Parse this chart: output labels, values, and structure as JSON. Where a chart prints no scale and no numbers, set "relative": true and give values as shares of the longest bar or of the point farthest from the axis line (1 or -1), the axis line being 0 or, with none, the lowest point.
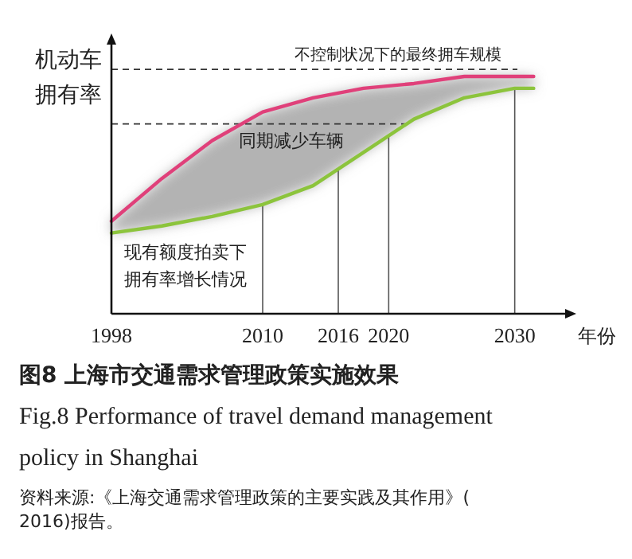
{
  "chart_data": {
    "type": "line",
    "relative": true,
    "title": "图8  上海市交通需求管理政策实施效果",
    "subtitle": "Fig.8  Performance of travel demand management policy in Shanghai",
    "xlabel": "年份",
    "ylabel": "机动车拥有率",
    "x": [
      1998,
      2002,
      2006,
      2010,
      2014,
      2018,
      2022,
      2026,
      2030,
      2031.5
    ],
    "xlim": [
      1998,
      2034
    ],
    "xticks": [
      1998,
      2010,
      2016,
      2020,
      2030
    ],
    "series": [
      {
        "color": "#e0407a",
        "values": [
          0.39,
          0.57,
          0.73,
          0.85,
          0.91,
          0.95,
          0.97,
          1.0,
          1.0,
          1.0
        ],
        "lower": [
          0.34,
          0.37,
          0.41,
          0.46,
          0.54,
          0.68,
          0.82,
          0.91,
          0.95,
          0.95
        ],
        "upper": [
          0.39,
          0.57,
          0.73,
          0.85,
          0.91,
          0.95,
          0.97,
          1.0,
          1.0,
          1.0
        ]
      },
      {
        "color": "#8cc43c",
        "values": [
          0.34,
          0.37,
          0.41,
          0.46,
          0.54,
          0.68,
          0.82,
          0.91,
          0.95,
          0.95
        ]
      }
    ],
    "ref_lines": [
      {
        "axis": "y",
        "value": 1.03,
        "label": "不控制状况下的最终拥车规模",
        "line_style": "dashed"
      },
      {
        "axis": "y",
        "value": 0.8,
        "line_style": "dashed"
      },
      {
        "axis": "x",
        "value": 2010
      },
      {
        "axis": "x",
        "value": 2016
      },
      {
        "axis": "x",
        "value": 2020
      },
      {
        "axis": "x",
        "value": 2030
      }
    ],
    "annotations": [
      "同期减少车辆",
      "现有额度拍卖下",
      "拥有率增长情况",
      "资料来源:《上海交通需求管理政策的主要实践及其作用》(2016)报告。"
    ],
    "line_style": "solid",
    "marker": "none"
  }
}
